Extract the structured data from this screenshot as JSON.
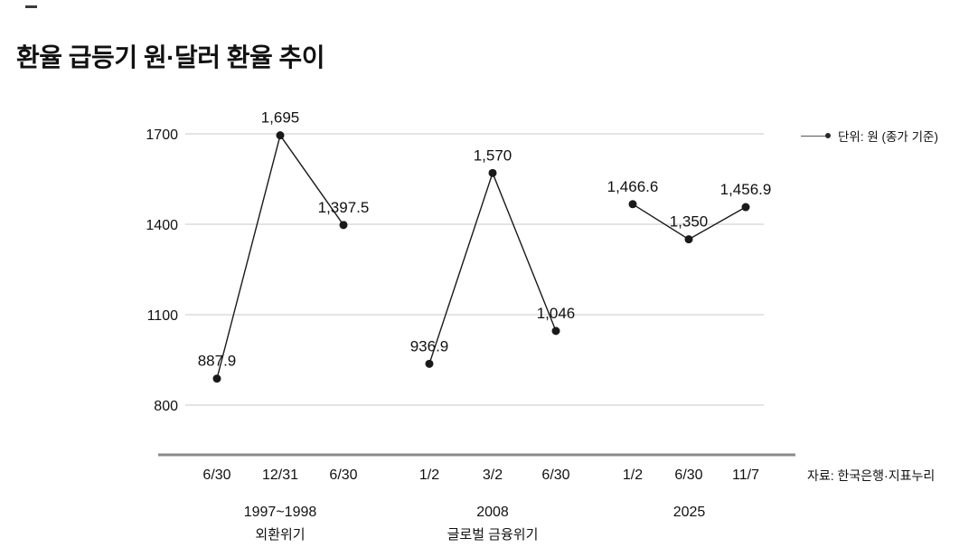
{
  "chart_data": {
    "type": "line",
    "title": "환율 급등기 원·달러 환율 추이",
    "unit_legend": "단위: 원 (종가 기준)",
    "legend_marker": "line-dot",
    "legend_position": "top-right",
    "source": "자료: 한국은행·지표누리",
    "grid": true,
    "yticks": [
      1700,
      1400,
      1100,
      800
    ],
    "ylim": [
      800,
      1700
    ],
    "groups": [
      {
        "period": "1997~1998",
        "crisis": "외환위기",
        "x": [
          "6/30",
          "12/31",
          "6/30"
        ],
        "values": [
          887.9,
          1695,
          1397.5
        ],
        "value_labels": [
          "887.9",
          "1,695",
          "1,397.5"
        ]
      },
      {
        "period": "2008",
        "crisis": "글로벌 금융위기",
        "x": [
          "1/2",
          "3/2",
          "6/30"
        ],
        "values": [
          936.9,
          1570,
          1046
        ],
        "value_labels": [
          "936.9",
          "1,570",
          "1,046"
        ]
      },
      {
        "period": "2025",
        "crisis": "",
        "x": [
          "1/2",
          "6/30",
          "11/7"
        ],
        "values": [
          1466.6,
          1350,
          1456.9
        ],
        "value_labels": [
          "1,466.6",
          "1,350",
          "1,456.9"
        ]
      }
    ]
  }
}
